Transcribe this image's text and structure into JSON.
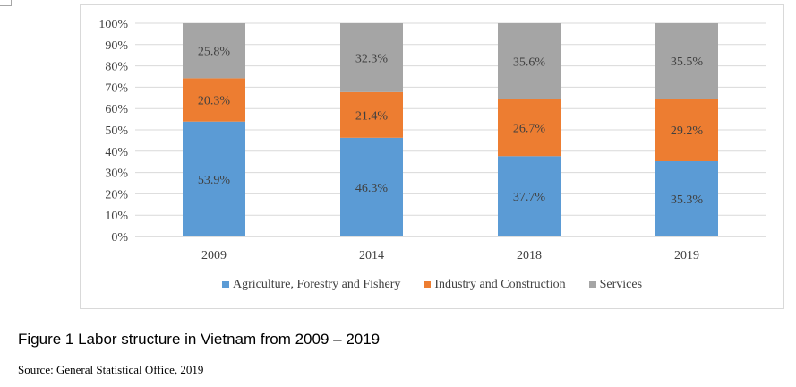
{
  "chart_data": {
    "type": "bar",
    "stacked": true,
    "normalized": true,
    "categories": [
      "2009",
      "2014",
      "2018",
      "2019"
    ],
    "series": [
      {
        "name": "Agriculture, Forestry and Fishery",
        "values": [
          53.9,
          46.3,
          37.7,
          35.3
        ],
        "labels": [
          "53.9%",
          "46.3%",
          "37.7%",
          "35.3%"
        ],
        "color": "#5b9bd5"
      },
      {
        "name": "Industry and Construction",
        "values": [
          20.3,
          21.4,
          26.7,
          29.2
        ],
        "labels": [
          "20.3%",
          "21.4%",
          "26.7%",
          "29.2%"
        ],
        "color": "#ed7d31"
      },
      {
        "name": "Services",
        "values": [
          25.8,
          32.3,
          35.6,
          35.5
        ],
        "labels": [
          "25.8%",
          "32.3%",
          "35.6%",
          "35.5%"
        ],
        "color": "#a5a5a5"
      }
    ],
    "y_ticks": [
      "0%",
      "10%",
      "20%",
      "30%",
      "40%",
      "50%",
      "60%",
      "70%",
      "80%",
      "90%",
      "100%"
    ],
    "ylim": [
      0,
      100
    ],
    "grid": true,
    "legend_position": "bottom"
  },
  "caption": "Figure 1 Labor structure in Vietnam from 2009 – 2019",
  "source": "Source: General Statistical Office, 2019"
}
